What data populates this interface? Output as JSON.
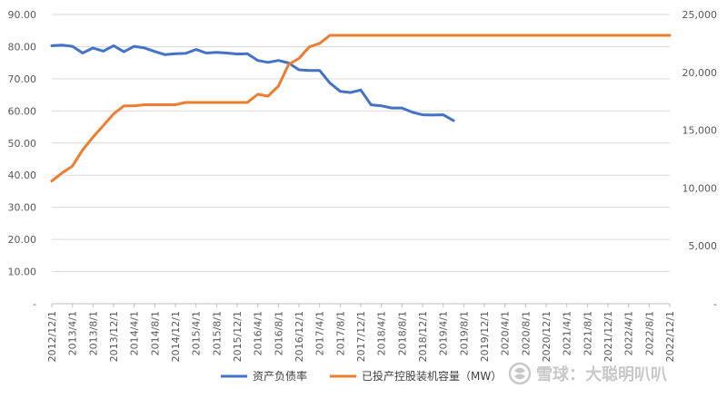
{
  "chart_data": {
    "type": "line",
    "title": "",
    "x": [
      "2012/12/1",
      "2013/4/1",
      "2013/8/1",
      "2013/12/1",
      "2014/4/1",
      "2014/8/1",
      "2014/12/1",
      "2015/4/1",
      "2015/8/1",
      "2015/12/1",
      "2016/4/1",
      "2016/8/1",
      "2016/12/1",
      "2017/4/1",
      "2017/8/1",
      "2017/12/1",
      "2018/4/1",
      "2018/8/1",
      "2018/12/1",
      "2019/4/1",
      "2019/8/1",
      "2019/12/1",
      "2020/4/1",
      "2020/8/1",
      "2020/12/1",
      "2021/4/1",
      "2021/8/1",
      "2021/12/1",
      "2022/4/1",
      "2022/8/1",
      "2022/12/1"
    ],
    "x_tick_labels": [
      "2012/12/1",
      "2013/4/1",
      "2013/8/1",
      "2013/12/1",
      "2014/4/1",
      "2014/8/1",
      "2014/12/1",
      "2015/4/1",
      "2015/8/1",
      "2015/12/1",
      "2016/4/1",
      "2016/8/1",
      "2016/12/1",
      "2017/4/1",
      "2017/8/1",
      "2017/12/1",
      "2018/4/1",
      "2018/8/1",
      "2018/12/1",
      "2019/4/1",
      "2019/8/1",
      "2019/12/1",
      "2020/4/1",
      "2020/8/1",
      "2020/12/1",
      "2021/4/1",
      "2021/8/1",
      "2021/12/1",
      "2022/4/1",
      "2022/8/1",
      "2022/12/1"
    ],
    "left_axis": {
      "ylim": [
        0,
        90
      ],
      "ticks": [
        0,
        10,
        20,
        30,
        40,
        50,
        60,
        70,
        80,
        90
      ],
      "tick_labels": [
        "-",
        "10.00",
        "20.00",
        "30.00",
        "40.00",
        "50.00",
        "60.00",
        "70.00",
        "80.00",
        "90.00"
      ]
    },
    "right_axis": {
      "ylim": [
        0,
        25000
      ],
      "ticks": [
        0,
        5000,
        10000,
        15000,
        20000,
        25000
      ],
      "tick_labels": [
        "-",
        "5,000",
        "10,000",
        "15,000",
        "20,000",
        "25,000"
      ]
    },
    "series": [
      {
        "name": "资产负债率",
        "axis": "left",
        "color": "#4472c4",
        "points": [
          [
            "2012/12/1",
            80.3
          ],
          [
            "2013/2/1",
            80.5
          ],
          [
            "2013/4/1",
            80.1
          ],
          [
            "2013/6/1",
            78.0
          ],
          [
            "2013/8/1",
            79.6
          ],
          [
            "2013/10/1",
            78.6
          ],
          [
            "2013/12/1",
            80.3
          ],
          [
            "2014/2/1",
            78.4
          ],
          [
            "2014/4/1",
            80.1
          ],
          [
            "2014/6/1",
            79.6
          ],
          [
            "2014/8/1",
            78.5
          ],
          [
            "2014/10/1",
            77.5
          ],
          [
            "2014/12/1",
            77.8
          ],
          [
            "2015/2/1",
            77.9
          ],
          [
            "2015/4/1",
            79.1
          ],
          [
            "2015/6/1",
            78.0
          ],
          [
            "2015/8/1",
            78.2
          ],
          [
            "2015/10/1",
            78.0
          ],
          [
            "2015/12/1",
            77.7
          ],
          [
            "2016/2/1",
            77.8
          ],
          [
            "2016/4/1",
            75.7
          ],
          [
            "2016/6/1",
            75.1
          ],
          [
            "2016/8/1",
            75.7
          ],
          [
            "2016/10/1",
            74.9
          ],
          [
            "2016/12/1",
            72.8
          ],
          [
            "2017/2/1",
            72.6
          ],
          [
            "2017/4/1",
            72.6
          ],
          [
            "2017/6/1",
            68.7
          ],
          [
            "2017/8/1",
            66.1
          ],
          [
            "2017/10/1",
            65.7
          ],
          [
            "2017/12/1",
            66.5
          ],
          [
            "2018/2/1",
            61.9
          ],
          [
            "2018/4/1",
            61.6
          ],
          [
            "2018/6/1",
            60.9
          ],
          [
            "2018/8/1",
            60.9
          ],
          [
            "2018/10/1",
            59.6
          ],
          [
            "2018/12/1",
            58.8
          ],
          [
            "2019/2/1",
            58.7
          ],
          [
            "2019/4/1",
            58.8
          ],
          [
            "2019/6/1",
            57.0
          ]
        ]
      },
      {
        "name": "已投产控股装机容量（MW）",
        "axis": "right",
        "color": "#ed7d31",
        "points": [
          [
            "2012/12/1",
            10600
          ],
          [
            "2013/2/1",
            11300
          ],
          [
            "2013/4/1",
            11900
          ],
          [
            "2013/6/1",
            13300
          ],
          [
            "2013/8/1",
            14400
          ],
          [
            "2013/10/1",
            15400
          ],
          [
            "2013/12/1",
            16400
          ],
          [
            "2014/2/1",
            17100
          ],
          [
            "2014/4/1",
            17100
          ],
          [
            "2014/6/1",
            17200
          ],
          [
            "2014/8/1",
            17200
          ],
          [
            "2014/10/1",
            17200
          ],
          [
            "2014/12/1",
            17200
          ],
          [
            "2015/2/1",
            17400
          ],
          [
            "2015/4/1",
            17400
          ],
          [
            "2015/6/1",
            17400
          ],
          [
            "2015/8/1",
            17400
          ],
          [
            "2015/10/1",
            17400
          ],
          [
            "2015/12/1",
            17400
          ],
          [
            "2016/2/1",
            17400
          ],
          [
            "2016/4/1",
            18100
          ],
          [
            "2016/6/1",
            17950
          ],
          [
            "2016/8/1",
            18800
          ],
          [
            "2016/10/1",
            20700
          ],
          [
            "2016/12/1",
            21200
          ],
          [
            "2017/2/1",
            22200
          ],
          [
            "2017/4/1",
            22500
          ],
          [
            "2017/6/1",
            23200
          ],
          [
            "2017/8/1",
            23200
          ],
          [
            "2017/10/1",
            23200
          ],
          [
            "2017/12/1",
            23200
          ],
          [
            "2018/2/1",
            23200
          ],
          [
            "2018/4/1",
            23200
          ],
          [
            "2018/6/1",
            23200
          ],
          [
            "2018/8/1",
            23200
          ],
          [
            "2018/10/1",
            23200
          ],
          [
            "2018/12/1",
            23200
          ],
          [
            "2019/2/1",
            23200
          ],
          [
            "2019/4/1",
            23200
          ],
          [
            "2019/6/1",
            23200
          ],
          [
            "2019/8/1",
            23200
          ],
          [
            "2019/10/1",
            23200
          ],
          [
            "2019/12/1",
            23200
          ],
          [
            "2020/2/1",
            23200
          ],
          [
            "2020/4/1",
            23200
          ],
          [
            "2020/6/1",
            23200
          ],
          [
            "2020/8/1",
            23200
          ],
          [
            "2020/10/1",
            23200
          ],
          [
            "2020/12/1",
            23200
          ],
          [
            "2021/2/1",
            23200
          ],
          [
            "2021/4/1",
            23200
          ],
          [
            "2021/6/1",
            23200
          ],
          [
            "2021/8/1",
            23200
          ],
          [
            "2021/10/1",
            23200
          ],
          [
            "2021/12/1",
            23200
          ],
          [
            "2022/2/1",
            23200
          ],
          [
            "2022/4/1",
            23200
          ],
          [
            "2022/6/1",
            23200
          ],
          [
            "2022/8/1",
            23200
          ],
          [
            "2022/10/1",
            23200
          ],
          [
            "2022/12/1",
            23200
          ]
        ]
      }
    ],
    "legend": {
      "placement": "bottom-center"
    },
    "grid": {
      "horizontal": true,
      "vertical": false,
      "color": "#d9d9d9"
    }
  },
  "watermark": {
    "text": "雪球：大聪明叭叭",
    "icon": "snowball-logo-icon"
  }
}
